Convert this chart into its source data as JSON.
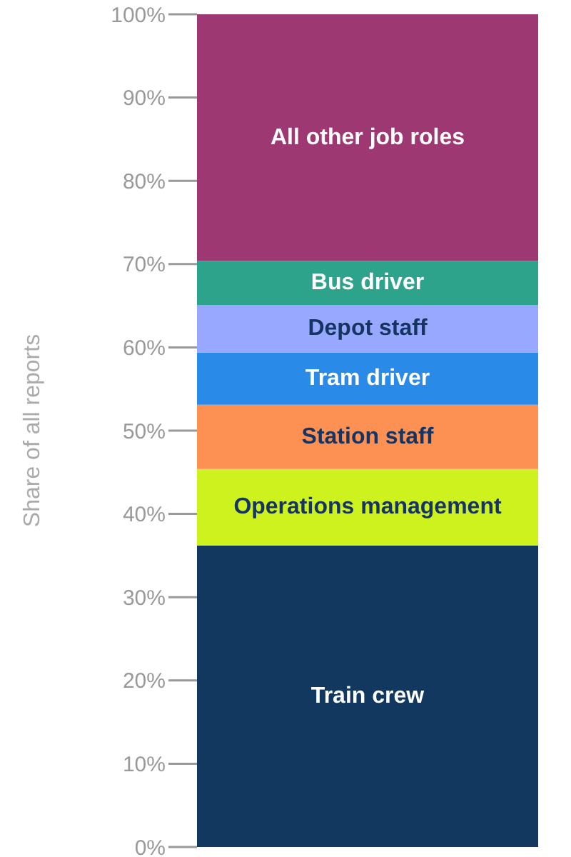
{
  "chart_data": {
    "type": "bar",
    "stacked": true,
    "ylabel": "Share of all reports",
    "categories": [
      null
    ],
    "series": [
      {
        "name": "Train crew",
        "color": "#12385f",
        "values": [
          36.2
        ]
      },
      {
        "name": "Operations management",
        "color": "#cdf21e",
        "values": [
          9.2
        ]
      },
      {
        "name": "Station staff",
        "color": "#fd9153",
        "values": [
          7.7
        ]
      },
      {
        "name": "Tram driver",
        "color": "#2a8ae8",
        "values": [
          6.3
        ]
      },
      {
        "name": "Depot staff",
        "color": "#97a8fe",
        "values": [
          5.7
        ]
      },
      {
        "name": "Bus driver",
        "color": "#2ea38b",
        "values": [
          5.3
        ]
      },
      {
        "name": "All other job roles",
        "color": "#9e3873",
        "values": [
          29.6
        ]
      }
    ],
    "ylim": [
      0,
      100
    ],
    "yticks": [
      {
        "value": 0,
        "label": "0%"
      },
      {
        "value": 10,
        "label": "10%"
      },
      {
        "value": 20,
        "label": "20%"
      },
      {
        "value": 30,
        "label": "30%"
      },
      {
        "value": 40,
        "label": "40%"
      },
      {
        "value": 50,
        "label": "50%"
      },
      {
        "value": 60,
        "label": "60%"
      },
      {
        "value": 70,
        "label": "70%"
      },
      {
        "value": 80,
        "label": "80%"
      },
      {
        "value": 90,
        "label": "90%"
      },
      {
        "value": 100,
        "label": "100%"
      }
    ],
    "grid": false,
    "legend": false,
    "tick_labels": "y"
  }
}
